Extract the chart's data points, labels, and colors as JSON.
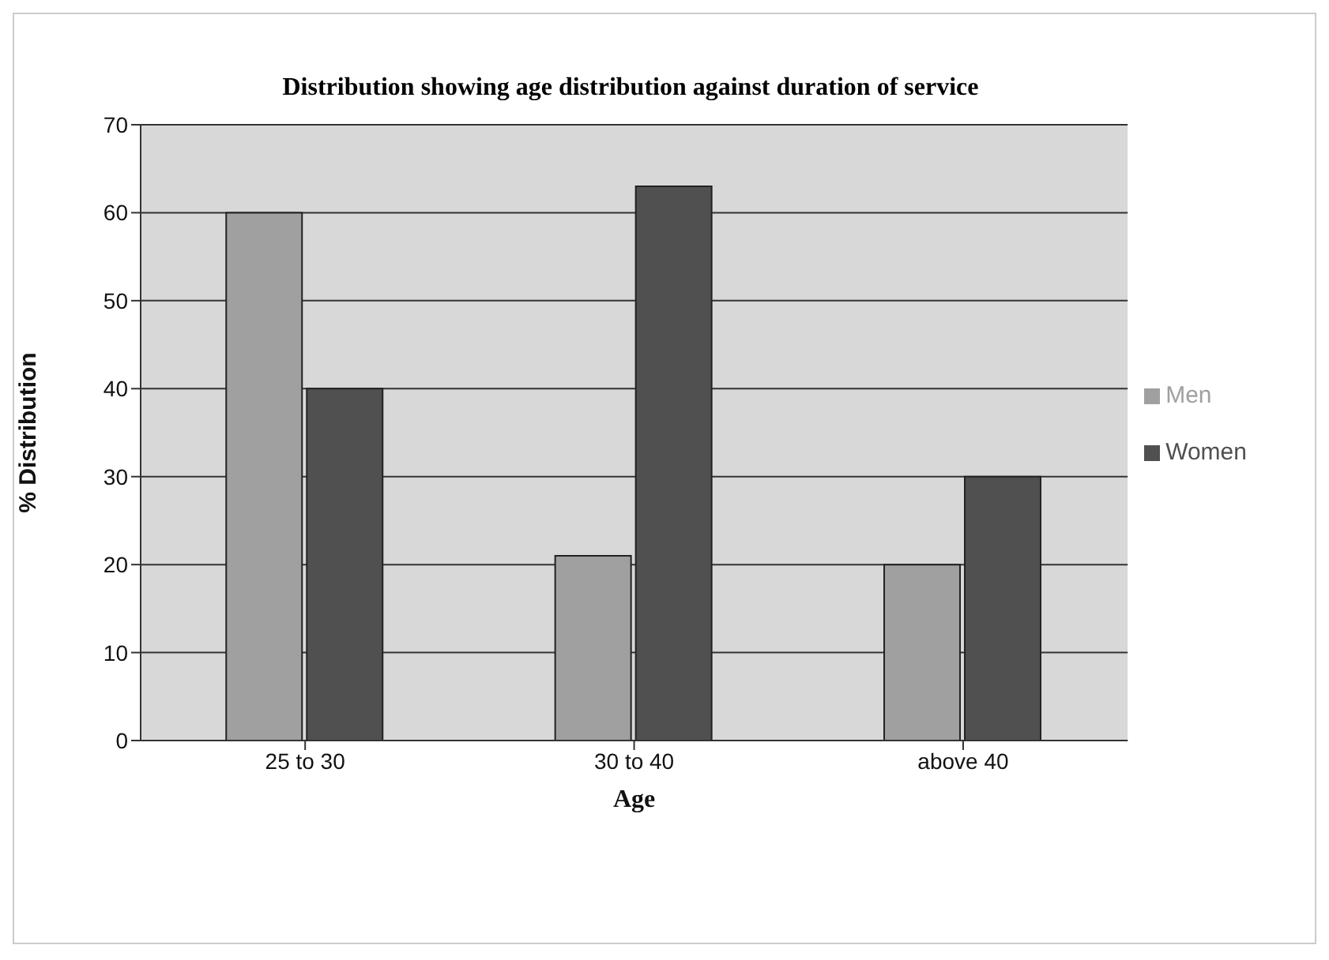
{
  "chart_data": {
    "type": "bar",
    "title": "Distribution showing age distribution against duration of service",
    "xlabel": "Age",
    "ylabel": "% Distribution",
    "categories": [
      "25 to 30",
      "30 to 40",
      "above 40"
    ],
    "series": [
      {
        "name": "Men",
        "color": "#a0a0a0",
        "values": [
          60,
          21,
          20
        ]
      },
      {
        "name": "Women",
        "color": "#505050",
        "values": [
          40,
          63,
          30
        ]
      }
    ],
    "ylim": [
      0,
      70
    ],
    "yticks": [
      0,
      10,
      20,
      30,
      40,
      50,
      60,
      70
    ],
    "grid": "y",
    "legend": "right"
  }
}
